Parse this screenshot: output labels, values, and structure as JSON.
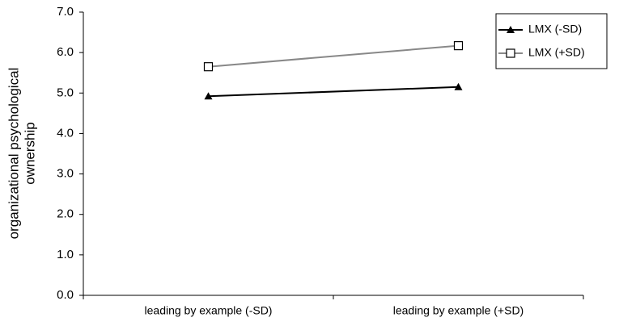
{
  "chart_data": {
    "type": "line",
    "ylabel": [
      "organizational  psychological",
      "ownership"
    ],
    "categories": [
      "leading by example  (-SD)",
      "leading by example  (+SD)"
    ],
    "series": [
      {
        "name": "LMX  (-SD)",
        "color": "#000000",
        "marker": "triangle",
        "values": [
          4.92,
          5.15
        ]
      },
      {
        "name": "LMX  (+SD)",
        "color": "#888888",
        "marker": "square",
        "values": [
          5.65,
          6.17
        ]
      }
    ],
    "ylim": [
      0,
      7
    ],
    "yticks": [
      {
        "value": 0,
        "label": "0.0"
      },
      {
        "value": 1,
        "label": "1.0"
      },
      {
        "value": 2,
        "label": "2.0"
      },
      {
        "value": 3,
        "label": "3.0"
      },
      {
        "value": 4,
        "label": "4.0"
      },
      {
        "value": 5,
        "label": "5.0"
      },
      {
        "value": 6,
        "label": "6.0"
      },
      {
        "value": 7,
        "label": "7.0"
      }
    ],
    "legend": "top-right"
  }
}
